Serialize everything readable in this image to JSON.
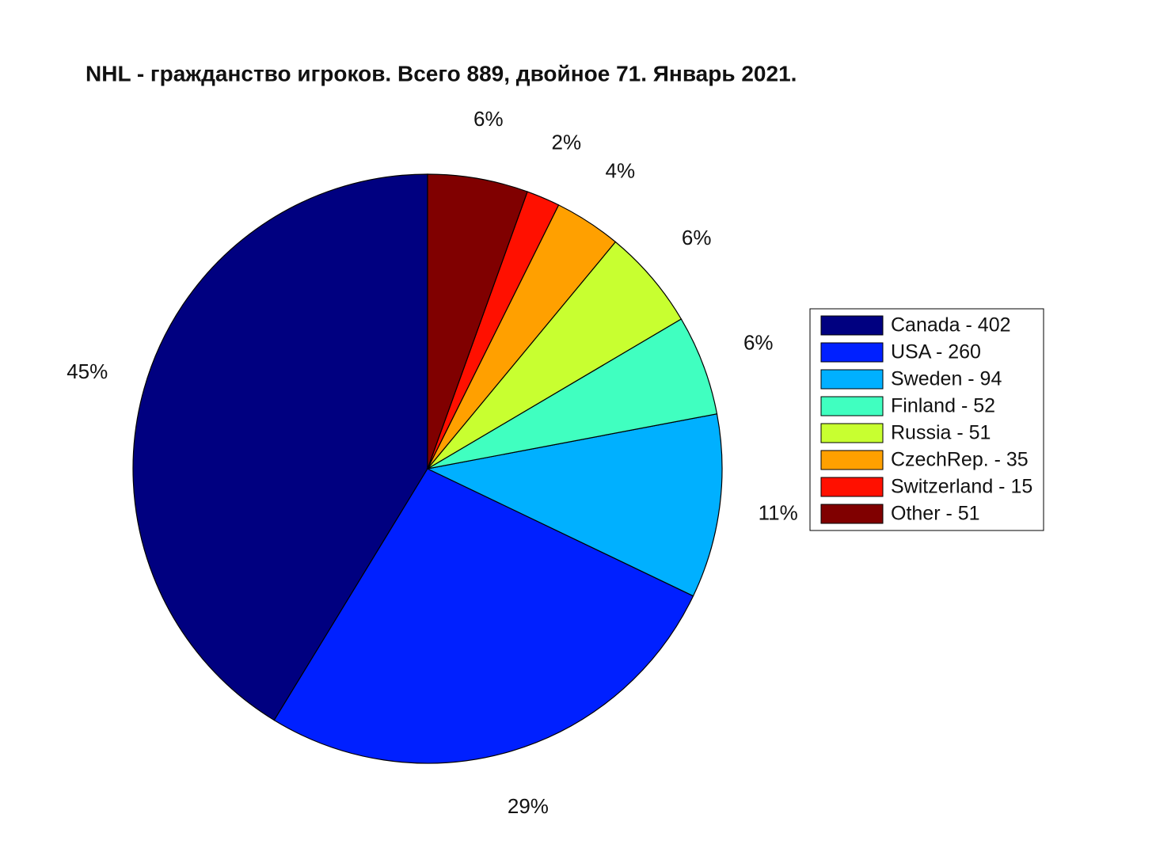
{
  "chart_data": {
    "type": "pie",
    "title": "NHL - гражданство игроков. Всего 889, двойное 71. Январь 2021.",
    "categories": [
      "Canada - 402",
      "USA - 260",
      "Sweden - 94",
      "Finland - 52",
      "Russia - 51",
      "CzechRep. - 35",
      "Switzerland - 15",
      "Other - 51"
    ],
    "values": [
      45,
      29,
      11,
      6,
      6,
      4,
      2,
      6
    ],
    "value_labels": [
      "45%",
      "29%",
      "11%",
      "6%",
      "6%",
      "4%",
      "2%",
      "6%"
    ],
    "colors": [
      "#000080",
      "#0020ff",
      "#00b0ff",
      "#40ffc0",
      "#c8ff30",
      "#ffa000",
      "#ff1000",
      "#800000"
    ],
    "legend": "right"
  }
}
